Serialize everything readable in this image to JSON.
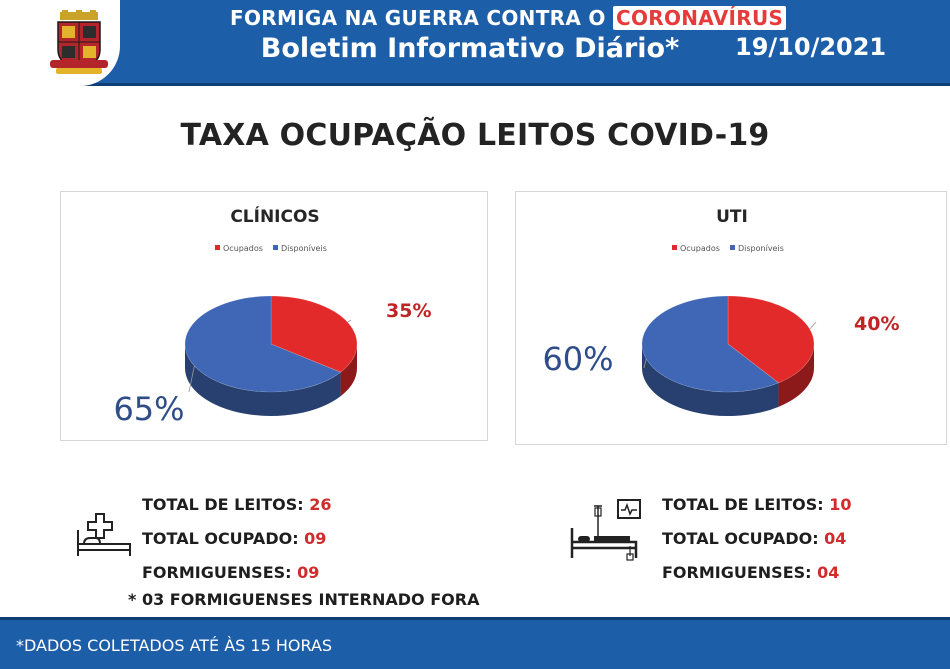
{
  "header": {
    "line1_prefix": "FORMIGA NA GUERRA CONTRA O",
    "line1_highlight": "CORONAVÍRUS",
    "line2": "Boletim Informativo Diário*",
    "date": "19/10/2021"
  },
  "title": "TAXA OCUPAÇÃO LEITOS COVID-19",
  "chart_data": [
    {
      "type": "pie",
      "title": "CLÍNICOS",
      "categories": [
        "Ocupados",
        "Disponíveis"
      ],
      "values": [
        35,
        65
      ],
      "labels": [
        "35%",
        "65%"
      ],
      "colors": [
        "#e32a2a",
        "#3f67b5"
      ],
      "legend_position": "top"
    },
    {
      "type": "pie",
      "title": "UTI",
      "categories": [
        "Ocupados",
        "Disponíveis"
      ],
      "values": [
        40,
        60
      ],
      "labels": [
        "40%",
        "60%"
      ],
      "colors": [
        "#e32a2a",
        "#3f67b5"
      ],
      "legend_position": "top"
    }
  ],
  "clinicos_stats": {
    "total_label": "TOTAL DE LEITOS:",
    "total_value": "26",
    "occupied_label": "TOTAL OCUPADO:",
    "occupied_value": "09",
    "local_label": "FORMIGUENSES:",
    "local_value": "09"
  },
  "uti_stats": {
    "total_label": "TOTAL DE LEITOS:",
    "total_value": "10",
    "occupied_label": "TOTAL OCUPADO:",
    "occupied_value": "04",
    "local_label": "FORMIGUENSES:",
    "local_value": "04"
  },
  "note": "* 03 FORMIGUENSES INTERNADO FORA",
  "footer": "*DADOS COLETADOS ATÉ ÀS 15 HORAS",
  "icons": {
    "crest": "city-crest-icon",
    "bed": "hospital-bed-icon",
    "icu": "icu-bed-monitor-icon"
  }
}
